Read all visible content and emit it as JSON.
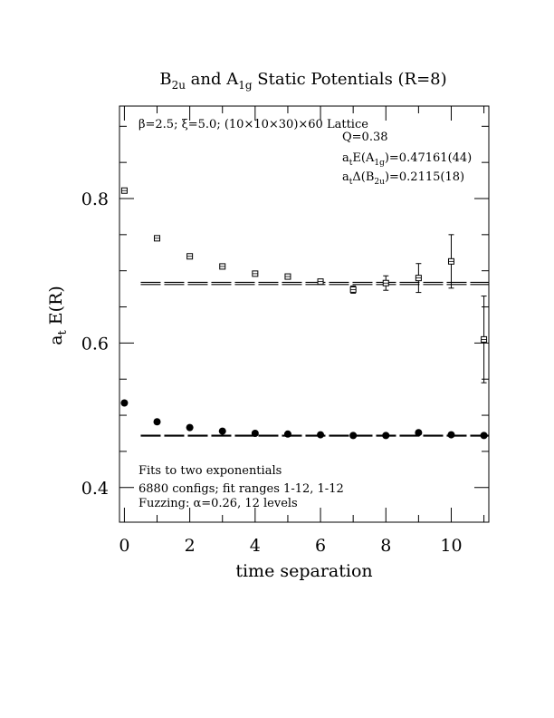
{
  "chart_data": {
    "type": "scatter",
    "title": {
      "p1": "B",
      "s1": "2u",
      "p2": " and A",
      "s2": "1g",
      "p3": " Static Potentials (R=8)"
    },
    "xlabel": "time separation",
    "ylabel": {
      "main": "a",
      "sub": "t",
      "rest": " E(R)"
    },
    "xlim": [
      -0.15,
      11.15
    ],
    "ylim": [
      0.352,
      0.928
    ],
    "x_ticks": [
      0,
      2,
      4,
      6,
      8,
      10
    ],
    "y_ticks": [
      0.4,
      0.6,
      0.8
    ],
    "x_tick_labels": [
      "0",
      "2",
      "4",
      "6",
      "8",
      "10"
    ],
    "y_tick_labels": [
      "0.4",
      "0.6",
      "0.8"
    ],
    "grid": false,
    "annotations": {
      "lattice": "β=2.5; ξ=5.0; (10×10×30)×60 Lattice",
      "q": "Q=0.38",
      "fit_a1g": {
        "p1": "a",
        "s1": "t",
        "p2": "E(A",
        "s2": "1g",
        "p3": ")=0.47161(44)"
      },
      "fit_b2u": {
        "p1": "a",
        "s1": "t",
        "p2": "Δ(B",
        "s2": "2u",
        "p3": ")=0.2115(18)"
      },
      "fits": "Fits to two exponentials",
      "configs": "6880 configs; fit ranges 1-12, 1-12",
      "fuzzing": "Fuzzing: α=0.26, 12 levels"
    },
    "series": [
      {
        "marker": "open-square",
        "points": [
          {
            "x": 0,
            "y": 0.811,
            "err": 0.002
          },
          {
            "x": 1,
            "y": 0.745,
            "err": 0.002
          },
          {
            "x": 2,
            "y": 0.72,
            "err": 0.002
          },
          {
            "x": 3,
            "y": 0.706,
            "err": 0.002
          },
          {
            "x": 4,
            "y": 0.696,
            "err": 0.002
          },
          {
            "x": 5,
            "y": 0.692,
            "err": 0.003
          },
          {
            "x": 6,
            "y": 0.685,
            "err": 0.003
          },
          {
            "x": 7,
            "y": 0.674,
            "err": 0.005
          },
          {
            "x": 8,
            "y": 0.683,
            "err": 0.01
          },
          {
            "x": 9,
            "y": 0.69,
            "err": 0.02
          },
          {
            "x": 10,
            "y": 0.713,
            "err": 0.037
          },
          {
            "x": 11,
            "y": 0.605,
            "err": 0.06
          }
        ],
        "fit_lines": [
          0.684,
          0.681
        ],
        "fit_x_range": [
          0.5,
          11.15
        ]
      },
      {
        "marker": "filled-circle",
        "points": [
          {
            "x": 0,
            "y": 0.517,
            "err": 0.001
          },
          {
            "x": 1,
            "y": 0.491,
            "err": 0.001
          },
          {
            "x": 2,
            "y": 0.483,
            "err": 0.001
          },
          {
            "x": 3,
            "y": 0.478,
            "err": 0.001
          },
          {
            "x": 4,
            "y": 0.475,
            "err": 0.001
          },
          {
            "x": 5,
            "y": 0.474,
            "err": 0.001
          },
          {
            "x": 6,
            "y": 0.473,
            "err": 0.001
          },
          {
            "x": 7,
            "y": 0.472,
            "err": 0.001
          },
          {
            "x": 8,
            "y": 0.472,
            "err": 0.001
          },
          {
            "x": 9,
            "y": 0.476,
            "err": 0.002
          },
          {
            "x": 10,
            "y": 0.473,
            "err": 0.002
          },
          {
            "x": 11,
            "y": 0.472,
            "err": 0.002
          }
        ],
        "fit_lines": [
          0.4724,
          0.4712
        ],
        "fit_x_range": [
          0.5,
          11.15
        ]
      }
    ]
  }
}
